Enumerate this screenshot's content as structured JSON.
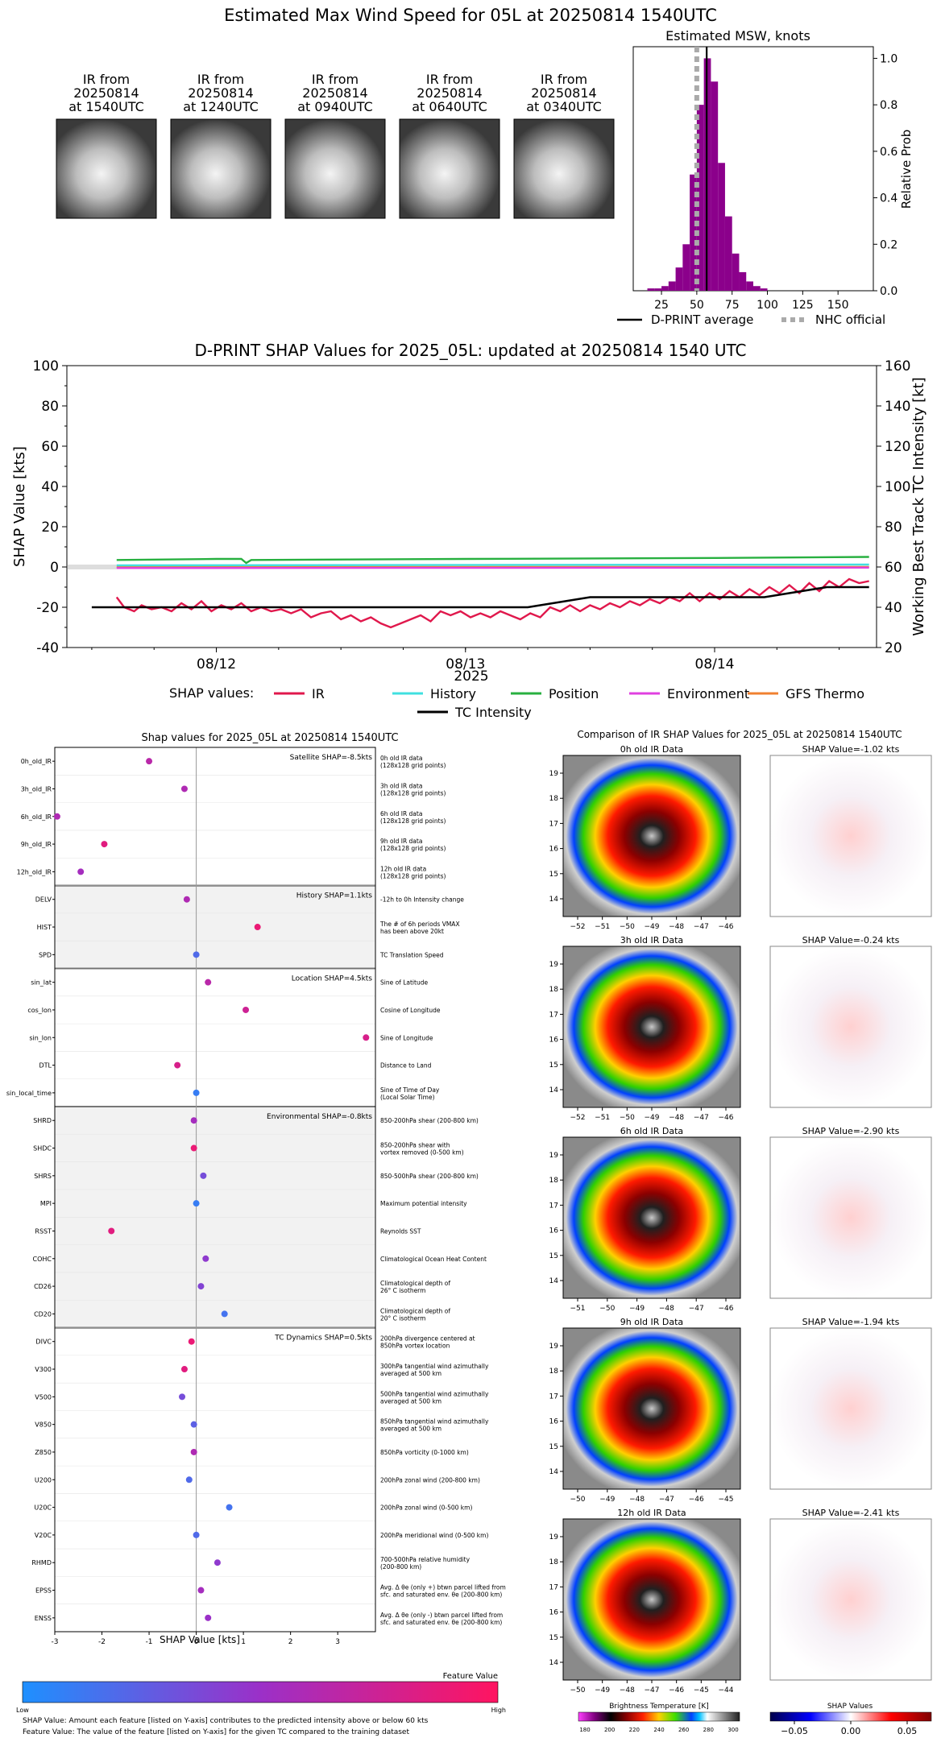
{
  "page_title": "Estimated Max Wind Speed for 05L at 20250814 1540UTC",
  "ir_thumbnails": [
    {
      "line1": "IR from",
      "line2": "20250814",
      "line3": "at 1540UTC"
    },
    {
      "line1": "IR from",
      "line2": "20250814",
      "line3": "at 1240UTC"
    },
    {
      "line1": "IR from",
      "line2": "20250814",
      "line3": "at 0940UTC"
    },
    {
      "line1": "IR from",
      "line2": "20250814",
      "line3": "at 0640UTC"
    },
    {
      "line1": "IR from",
      "line2": "20250814",
      "line3": "at 0340UTC"
    }
  ],
  "msw_histogram": {
    "title": "Estimated MSW, knots",
    "ylabel": "Relative Prob",
    "x_ticks": [
      "25",
      "50",
      "75",
      "100",
      "125",
      "150"
    ],
    "y_ticks": [
      "0.0",
      "0.2",
      "0.4",
      "0.6",
      "0.8",
      "1.0"
    ],
    "legend": {
      "average": "D-PRINT average",
      "official": "NHC official"
    }
  },
  "shap_timeseries": {
    "title": "D-PRINT SHAP Values for 2025_05L: updated at 20250814 1540 UTC",
    "ylabel_left": "SHAP Value [kts]",
    "ylabel_right": "Working Best Track TC Intensity [kt]",
    "xlabel": "2025",
    "x_ticks": [
      "08/12",
      "08/13",
      "08/14"
    ],
    "y_ticks_left": [
      "-40",
      "-20",
      "0",
      "20",
      "40",
      "60",
      "80",
      "100"
    ],
    "y_ticks_right": [
      "20",
      "40",
      "60",
      "80",
      "100",
      "120",
      "140",
      "160"
    ],
    "legend_title": "SHAP values:",
    "legend_items": [
      "IR",
      "History",
      "Position",
      "Environment",
      "GFS Thermo",
      "TC Intensity"
    ]
  },
  "shap_features": {
    "title": "Shap values for 2025_05L at 20250814 1540UTC",
    "xlabel": "SHAP Value [kts]",
    "x_ticks": [
      "-3",
      "-2",
      "-1",
      "0",
      "1",
      "2",
      "3"
    ],
    "groups": [
      {
        "label": "Satellite SHAP=-8.5kts"
      },
      {
        "label": "History SHAP=1.1kts"
      },
      {
        "label": "Location SHAP=4.5kts"
      },
      {
        "label": "Environmental SHAP=-0.8kts"
      },
      {
        "label": "TC Dynamics SHAP=0.5kts"
      }
    ],
    "features": [
      {
        "name": "0h_old_IR",
        "desc1": "0h old IR data",
        "desc2": "(128x128 grid points)"
      },
      {
        "name": "3h_old_IR",
        "desc1": "3h old IR data",
        "desc2": "(128x128 grid points)"
      },
      {
        "name": "6h_old_IR",
        "desc1": "6h old IR data",
        "desc2": "(128x128 grid points)"
      },
      {
        "name": "9h_old_IR",
        "desc1": "9h old IR data",
        "desc2": "(128x128 grid points)"
      },
      {
        "name": "12h_old_IR",
        "desc1": "12h old IR data",
        "desc2": "(128x128 grid points)"
      },
      {
        "name": "DELV",
        "desc1": "-12h to 0h Intensity change",
        "desc2": ""
      },
      {
        "name": "HIST",
        "desc1": "The # of 6h periods VMAX",
        "desc2": "has been above 20kt"
      },
      {
        "name": "SPD",
        "desc1": "TC Translation Speed",
        "desc2": ""
      },
      {
        "name": "sin_lat",
        "desc1": "Sine of Latitude",
        "desc2": ""
      },
      {
        "name": "cos_lon",
        "desc1": "Cosine of Longitude",
        "desc2": ""
      },
      {
        "name": "sin_lon",
        "desc1": "Sine of Longitude",
        "desc2": ""
      },
      {
        "name": "DTL",
        "desc1": "Distance to Land",
        "desc2": ""
      },
      {
        "name": "sin_local_time",
        "desc1": "Sine of Time of Day",
        "desc2": "(Local Solar Time)"
      },
      {
        "name": "SHRD",
        "desc1": "850-200hPa shear (200-800 km)",
        "desc2": ""
      },
      {
        "name": "SHDC",
        "desc1": "850-200hPa shear with",
        "desc2": "vortex removed (0-500 km)"
      },
      {
        "name": "SHRS",
        "desc1": "850-500hPa shear (200-800 km)",
        "desc2": ""
      },
      {
        "name": "MPI",
        "desc1": "Maximum potential intensity",
        "desc2": ""
      },
      {
        "name": "RSST",
        "desc1": "Reynolds SST",
        "desc2": ""
      },
      {
        "name": "COHC",
        "desc1": "Climatological Ocean Heat Content",
        "desc2": ""
      },
      {
        "name": "CD26",
        "desc1": "Climatological depth of",
        "desc2": "26° C isotherm"
      },
      {
        "name": "CD20",
        "desc1": "Climatological depth of",
        "desc2": "20° C isotherm"
      },
      {
        "name": "DIVC",
        "desc1": "200hPa divergence centered at",
        "desc2": "850hPa vortex location"
      },
      {
        "name": "V300",
        "desc1": "300hPa tangential wind azimuthally",
        "desc2": "averaged at 500 km"
      },
      {
        "name": "V500",
        "desc1": "500hPa tangential wind azimuthally",
        "desc2": "averaged at 500 km"
      },
      {
        "name": "V850",
        "desc1": "850hPa tangential wind azimuthally",
        "desc2": "averaged at 500 km"
      },
      {
        "name": "Z850",
        "desc1": "850hPa vorticity (0-1000 km)",
        "desc2": ""
      },
      {
        "name": "U200",
        "desc1": "200hPa zonal wind (200-800 km)",
        "desc2": ""
      },
      {
        "name": "U20C",
        "desc1": "200hPa zonal wind (0-500 km)",
        "desc2": ""
      },
      {
        "name": "V20C",
        "desc1": "200hPa meridional wind (0-500 km)",
        "desc2": ""
      },
      {
        "name": "RHMD",
        "desc1": "700-500hPa relative humidity",
        "desc2": "(200-800 km)"
      },
      {
        "name": "EPSS",
        "desc1": "Avg. Δ θe (only +) btwn parcel lifted from",
        "desc2": "sfc. and saturated env. θe (200-800 km)"
      },
      {
        "name": "ENSS",
        "desc1": "Avg. Δ θe (only -) btwn parcel lifted from",
        "desc2": "sfc. and saturated env. θe (200-800 km)"
      }
    ],
    "colorbar": {
      "title": "Feature Value",
      "low": "Low",
      "high": "High"
    },
    "footnote1": "SHAP Value: Amount each feature [listed on Y-axis] contributes to the predicted intensity above or below 60 kts",
    "footnote2": "Feature Value: The value of the feature [listed on Y-axis] for the given TC compared to the training dataset"
  },
  "ir_comparison": {
    "title": "Comparison of IR SHAP Values for 2025_05L at 20250814 1540UTC",
    "rows": [
      {
        "ir_title": "0h old IR Data",
        "shap_title": "SHAP Value=-1.02 kts",
        "x_ticks": [
          "−52",
          "−51",
          "−50",
          "−49",
          "−48",
          "−47",
          "−46"
        ],
        "y_ticks": [
          "14",
          "15",
          "16",
          "17",
          "18",
          "19"
        ]
      },
      {
        "ir_title": "3h old IR Data",
        "shap_title": "SHAP Value=-0.24 kts",
        "x_ticks": [
          "−52",
          "−51",
          "−50",
          "−49",
          "−48",
          "−47",
          "−46"
        ],
        "y_ticks": [
          "14",
          "15",
          "16",
          "17",
          "18",
          "19"
        ]
      },
      {
        "ir_title": "6h old IR Data",
        "shap_title": "SHAP Value=-2.90 kts",
        "x_ticks": [
          "−51",
          "−50",
          "−49",
          "−48",
          "−47",
          "−46"
        ],
        "y_ticks": [
          "14",
          "15",
          "16",
          "17",
          "18",
          "19"
        ]
      },
      {
        "ir_title": "9h old IR Data",
        "shap_title": "SHAP Value=-1.94 kts",
        "x_ticks": [
          "−50",
          "−49",
          "−48",
          "−47",
          "−46",
          "−45"
        ],
        "y_ticks": [
          "14",
          "15",
          "16",
          "17",
          "18",
          "19"
        ]
      },
      {
        "ir_title": "12h old IR Data",
        "shap_title": "SHAP Value=-2.41 kts",
        "x_ticks": [
          "−50",
          "−49",
          "−48",
          "−47",
          "−46",
          "−45",
          "−44"
        ],
        "y_ticks": [
          "14",
          "15",
          "16",
          "17",
          "18",
          "19"
        ]
      }
    ],
    "bt_colorbar": {
      "title": "Brightness Temperature [K]",
      "ticks": [
        "180",
        "200",
        "220",
        "240",
        "260",
        "280",
        "300"
      ]
    },
    "shap_colorbar": {
      "title": "SHAP Values",
      "ticks": [
        "−0.05",
        "0.00",
        "0.05"
      ]
    }
  },
  "colors": {
    "ir": "#e0184c",
    "history": "#40e0e0",
    "position": "#28b040",
    "environment": "#e040e0",
    "gfs_thermo": "#f08030",
    "tc_intensity": "#000000",
    "histogram": "#8b008b",
    "nhc": "#aaaaaa"
  },
  "chart_data": [
    {
      "type": "bar",
      "title": "Estimated MSW, knots",
      "xlabel": "",
      "ylabel": "Relative Prob",
      "xlim": [
        5,
        175
      ],
      "ylim": [
        0,
        1.05
      ],
      "bin_width": 5,
      "bin_starts": [
        15,
        20,
        25,
        30,
        35,
        40,
        45,
        50,
        55,
        60,
        65,
        70,
        75,
        80,
        85,
        90,
        95
      ],
      "values": [
        0.01,
        0.01,
        0.02,
        0.04,
        0.1,
        0.2,
        0.5,
        0.8,
        1.0,
        0.9,
        0.55,
        0.32,
        0.16,
        0.08,
        0.04,
        0.02,
        0.01
      ],
      "average": 57,
      "nhc_official": 50
    },
    {
      "type": "line",
      "title": "D-PRINT SHAP Values for 2025_05L: updated at 20250814 1540 UTC",
      "xlabel": "2025",
      "ylabel": "SHAP Value [kts]",
      "ylabel_right": "Working Best Track TC Intensity [kt]",
      "xlim": [
        -0.6,
        2.65
      ],
      "ylim": [
        -40,
        100
      ],
      "ylim_right": [
        20,
        160
      ],
      "x_ticks": [
        "08/12",
        "08/13",
        "08/14"
      ],
      "series": [
        {
          "name": "IR",
          "points": [
            [
              -0.4,
              -15
            ],
            [
              -0.37,
              -20
            ],
            [
              -0.33,
              -22
            ],
            [
              -0.3,
              -19
            ],
            [
              -0.26,
              -21
            ],
            [
              -0.22,
              -20
            ],
            [
              -0.18,
              -22
            ],
            [
              -0.14,
              -18
            ],
            [
              -0.1,
              -21
            ],
            [
              -0.06,
              -17
            ],
            [
              -0.02,
              -22
            ],
            [
              0.02,
              -19
            ],
            [
              0.06,
              -21
            ],
            [
              0.1,
              -18
            ],
            [
              0.14,
              -22
            ],
            [
              0.18,
              -20
            ],
            [
              0.22,
              -22
            ],
            [
              0.26,
              -21
            ],
            [
              0.3,
              -23
            ],
            [
              0.34,
              -21
            ],
            [
              0.38,
              -25
            ],
            [
              0.42,
              -23
            ],
            [
              0.46,
              -22
            ],
            [
              0.5,
              -26
            ],
            [
              0.54,
              -24
            ],
            [
              0.58,
              -27
            ],
            [
              0.62,
              -25
            ],
            [
              0.66,
              -28
            ],
            [
              0.7,
              -30
            ],
            [
              0.74,
              -28
            ],
            [
              0.78,
              -26
            ],
            [
              0.82,
              -24
            ],
            [
              0.86,
              -27
            ],
            [
              0.9,
              -22
            ],
            [
              0.94,
              -24
            ],
            [
              0.98,
              -22
            ],
            [
              1.02,
              -25
            ],
            [
              1.06,
              -23
            ],
            [
              1.1,
              -25
            ],
            [
              1.14,
              -22
            ],
            [
              1.18,
              -24
            ],
            [
              1.22,
              -26
            ],
            [
              1.26,
              -23
            ],
            [
              1.3,
              -25
            ],
            [
              1.34,
              -20
            ],
            [
              1.38,
              -22
            ],
            [
              1.42,
              -19
            ],
            [
              1.46,
              -22
            ],
            [
              1.5,
              -19
            ],
            [
              1.54,
              -21
            ],
            [
              1.58,
              -18
            ],
            [
              1.62,
              -20
            ],
            [
              1.66,
              -17
            ],
            [
              1.7,
              -19
            ],
            [
              1.74,
              -16
            ],
            [
              1.78,
              -18
            ],
            [
              1.82,
              -15
            ],
            [
              1.86,
              -17
            ],
            [
              1.9,
              -13
            ],
            [
              1.94,
              -17
            ],
            [
              1.98,
              -13
            ],
            [
              2.02,
              -16
            ],
            [
              2.06,
              -12
            ],
            [
              2.1,
              -15
            ],
            [
              2.14,
              -11
            ],
            [
              2.18,
              -14
            ],
            [
              2.22,
              -10
            ],
            [
              2.26,
              -13
            ],
            [
              2.3,
              -9
            ],
            [
              2.34,
              -13
            ],
            [
              2.38,
              -8
            ],
            [
              2.42,
              -12
            ],
            [
              2.46,
              -7
            ],
            [
              2.5,
              -10
            ],
            [
              2.54,
              -6
            ],
            [
              2.58,
              -8
            ],
            [
              2.62,
              -7
            ]
          ]
        },
        {
          "name": "History",
          "points": [
            [
              -0.4,
              0.8
            ],
            [
              2.62,
              1.2
            ]
          ]
        },
        {
          "name": "Position",
          "points": [
            [
              -0.4,
              3.5
            ],
            [
              0.0,
              4.0
            ],
            [
              0.1,
              4.0
            ],
            [
              0.12,
              2.0
            ],
            [
              0.14,
              3.5
            ],
            [
              1.0,
              4.0
            ],
            [
              2.0,
              4.5
            ],
            [
              2.62,
              5.0
            ]
          ]
        },
        {
          "name": "Environment",
          "points": [
            [
              -0.4,
              -0.5
            ],
            [
              2.62,
              -0.3
            ]
          ]
        },
        {
          "name": "GFS Thermo",
          "points": [
            [
              -0.4,
              0.0
            ],
            [
              2.62,
              0.0
            ]
          ]
        }
      ],
      "tc_intensity": [
        [
          -0.5,
          40
        ],
        [
          1.25,
          40
        ],
        [
          1.5,
          45
        ],
        [
          2.2,
          45
        ],
        [
          2.45,
          50
        ],
        [
          2.62,
          50
        ]
      ]
    },
    {
      "type": "scatter",
      "title": "Shap values for 2025_05L at 20250814 1540UTC",
      "xlabel": "SHAP Value [kts]",
      "ylabel": "",
      "xlim": [
        -3.0,
        3.8
      ],
      "values": [
        -1.0,
        -0.25,
        -2.95,
        -1.95,
        -2.45,
        -0.2,
        1.3,
        0.0,
        0.25,
        1.05,
        3.6,
        -0.4,
        0.0,
        -0.05,
        -0.05,
        0.15,
        0.0,
        -1.8,
        0.2,
        0.1,
        0.6,
        -0.1,
        -0.25,
        -0.3,
        -0.05,
        -0.05,
        -0.15,
        0.7,
        0.0,
        0.45,
        0.1,
        0.25
      ],
      "feature_values": [
        0.65,
        0.6,
        0.6,
        0.85,
        0.55,
        0.6,
        0.9,
        0.2,
        0.65,
        0.75,
        0.8,
        0.8,
        0.1,
        0.55,
        0.9,
        0.35,
        0.1,
        0.85,
        0.45,
        0.4,
        0.15,
        0.9,
        0.85,
        0.35,
        0.25,
        0.6,
        0.2,
        0.15,
        0.2,
        0.45,
        0.55,
        0.5
      ]
    }
  ]
}
